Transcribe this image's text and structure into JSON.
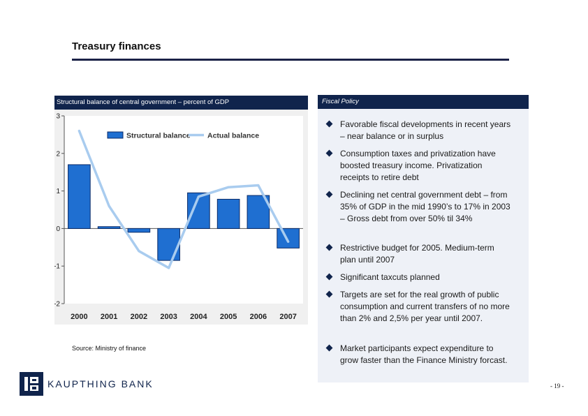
{
  "page": {
    "title": "Treasury finances",
    "source": "Source: Ministry of finance",
    "page_number": "- 19 -"
  },
  "chart_header": "Structural balance of central government – percent of GDP",
  "chart_data": {
    "type": "bar",
    "categories": [
      "2000",
      "2001",
      "2002",
      "2003",
      "2004",
      "2005",
      "2006",
      "2007"
    ],
    "series": [
      {
        "name": "Structural balance",
        "type": "bar",
        "color": "#1f6fd1",
        "values": [
          1.7,
          0.05,
          -0.1,
          -0.85,
          0.95,
          0.78,
          0.88,
          -0.52
        ]
      },
      {
        "name": "Actual balance",
        "type": "line",
        "color": "#a9ccef",
        "values": [
          2.6,
          0.6,
          -0.6,
          -1.05,
          0.85,
          1.1,
          1.15,
          -0.35
        ]
      }
    ],
    "ylim": [
      -2,
      3
    ],
    "yticks": [
      "3",
      "2",
      "1",
      "0",
      "-1",
      "-2"
    ],
    "legend": "top-center",
    "grid": false
  },
  "panel": {
    "header": "Fiscal Policy",
    "bullets": [
      "Favorable fiscal developments in recent years – near balance or in surplus",
      "Consumption taxes and privatization have boosted treasury income. Privatization receipts to retire debt",
      "Declining net central government debt – from 35% of GDP in the mid 1990’s to 17% in 2003 – Gross debt from over 50% til 34%",
      "Restrictive budget for 2005. Medium-term plan until 2007",
      "Significant taxcuts planned",
      "Targets are set for the real growth of public consumption and current transfers of no more than 2% and 2,5% per year until 2007.",
      "Market participants expect expenditure to grow faster than the Finance Ministry forcast."
    ]
  },
  "logo": {
    "text": "KAUPTHING BANK",
    "icon": "kaupthing-logo-icon",
    "color": "#10244c"
  }
}
